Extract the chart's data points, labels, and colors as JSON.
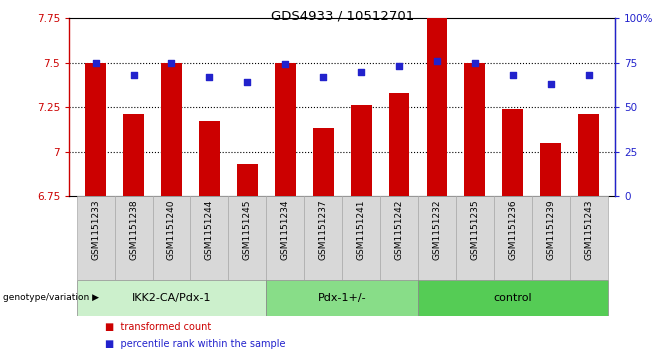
{
  "title": "GDS4933 / 10512701",
  "samples": [
    "GSM1151233",
    "GSM1151238",
    "GSM1151240",
    "GSM1151244",
    "GSM1151245",
    "GSM1151234",
    "GSM1151237",
    "GSM1151241",
    "GSM1151242",
    "GSM1151232",
    "GSM1151235",
    "GSM1151236",
    "GSM1151239",
    "GSM1151243"
  ],
  "bar_values": [
    7.5,
    7.21,
    7.5,
    7.17,
    6.93,
    7.5,
    7.13,
    7.26,
    7.33,
    7.86,
    7.5,
    7.24,
    7.05,
    7.21
  ],
  "dot_values": [
    75,
    68,
    75,
    67,
    64,
    74,
    67,
    70,
    73,
    76,
    75,
    68,
    63,
    68
  ],
  "groups": [
    {
      "label": "IKK2-CA/Pdx-1",
      "start": 0,
      "end": 5,
      "color": "#ccf0cc"
    },
    {
      "label": "Pdx-1+/-",
      "start": 5,
      "end": 9,
      "color": "#88dd88"
    },
    {
      "label": "control",
      "start": 9,
      "end": 14,
      "color": "#55cc55"
    }
  ],
  "bar_color": "#cc0000",
  "dot_color": "#2222cc",
  "ylim_left": [
    6.75,
    7.75
  ],
  "ylim_right": [
    0,
    100
  ],
  "yticks_left": [
    6.75,
    7.0,
    7.25,
    7.5,
    7.75
  ],
  "yticks_right": [
    0,
    25,
    50,
    75,
    100
  ],
  "ytick_labels_left": [
    "6.75",
    "7",
    "7.25",
    "7.5",
    "7.75"
  ],
  "ytick_labels_right": [
    "0",
    "25",
    "50",
    "75",
    "100%"
  ],
  "grid_values": [
    7.0,
    7.25,
    7.5
  ],
  "legend_items": [
    {
      "label": "transformed count",
      "color": "#cc0000"
    },
    {
      "label": "percentile rank within the sample",
      "color": "#2222cc"
    }
  ],
  "genotype_label": "genotype/variation"
}
